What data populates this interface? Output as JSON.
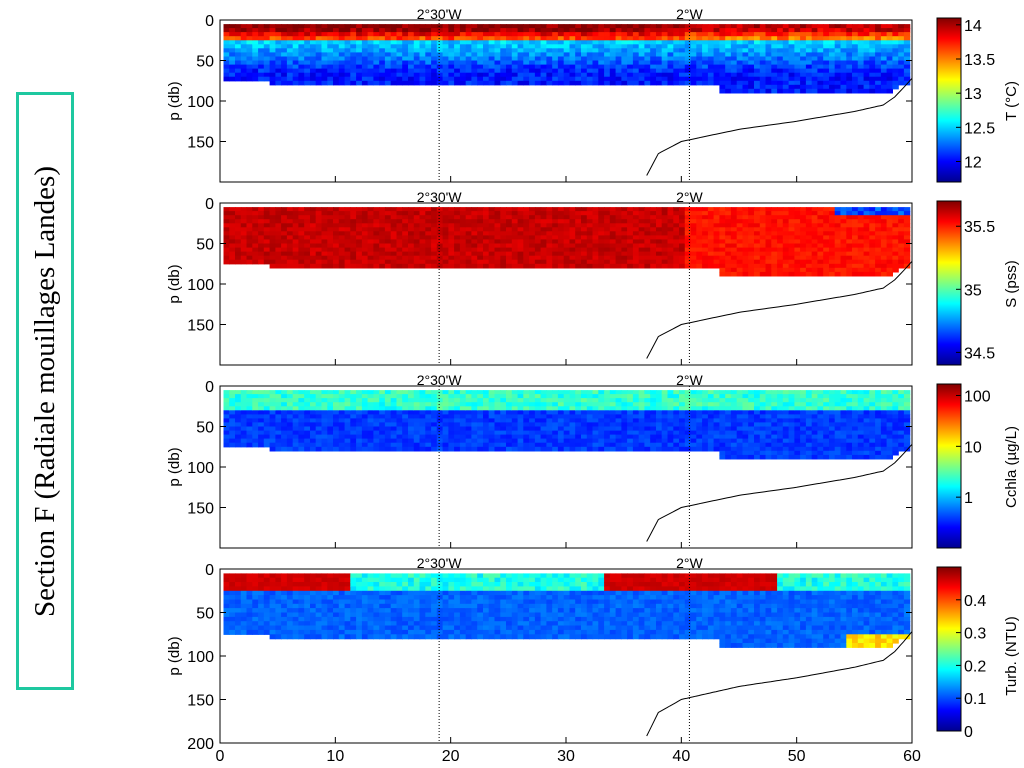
{
  "section_title": "Section F (Radiale mouillages Landes)",
  "colors": {
    "border_accent": "#1ec8a0"
  },
  "chart_data": [
    {
      "type": "heatmap",
      "variable": "temperature",
      "ylabel": "p (db)",
      "colorbar_label": "T (°C)",
      "colorbar_ticks": [
        "14",
        "13.5",
        "13",
        "12.5",
        "12"
      ],
      "colorbar_range": [
        11.7,
        14.1
      ],
      "yticks": [
        "0",
        "50",
        "100",
        "150"
      ],
      "ylim": [
        0,
        200
      ],
      "xlim": [
        0,
        60
      ],
      "longitude_markers": [
        {
          "x": 19,
          "label": "2°30'W"
        },
        {
          "x": 40.7,
          "label": "2°W"
        }
      ]
    },
    {
      "type": "heatmap",
      "variable": "salinity",
      "ylabel": "p (db)",
      "colorbar_label": "S (pss)",
      "colorbar_ticks": [
        "35.5",
        "35",
        "34.5"
      ],
      "colorbar_range": [
        34.4,
        35.7
      ],
      "yticks": [
        "0",
        "50",
        "100",
        "150"
      ],
      "ylim": [
        0,
        200
      ],
      "xlim": [
        0,
        60
      ],
      "longitude_markers": [
        {
          "x": 19,
          "label": "2°30'W"
        },
        {
          "x": 40.7,
          "label": "2°W"
        }
      ]
    },
    {
      "type": "heatmap",
      "variable": "chlorophyll",
      "ylabel": "p (db)",
      "colorbar_label": "Cchla (µg/L)",
      "colorbar_ticks": [
        "100",
        "10",
        "1"
      ],
      "colorbar_scale": "log",
      "yticks": [
        "0",
        "50",
        "100",
        "150"
      ],
      "ylim": [
        0,
        200
      ],
      "xlim": [
        0,
        60
      ],
      "longitude_markers": [
        {
          "x": 19,
          "label": "2°30'W"
        },
        {
          "x": 40.7,
          "label": "2°W"
        }
      ]
    },
    {
      "type": "heatmap",
      "variable": "turbidity",
      "ylabel": "p (db)",
      "colorbar_label": "Turb. (NTU)",
      "colorbar_ticks": [
        "0.4",
        "0.3",
        "0.2",
        "0.1",
        "0"
      ],
      "colorbar_range": [
        0,
        0.5
      ],
      "yticks": [
        "0",
        "50",
        "100",
        "150",
        "200"
      ],
      "xticks": [
        "0",
        "10",
        "20",
        "30",
        "40",
        "50",
        "60"
      ],
      "ylim": [
        0,
        200
      ],
      "xlim": [
        0,
        60
      ],
      "longitude_markers": [
        {
          "x": 19,
          "label": "2°30'W"
        },
        {
          "x": 40.7,
          "label": "2°W"
        }
      ]
    }
  ]
}
